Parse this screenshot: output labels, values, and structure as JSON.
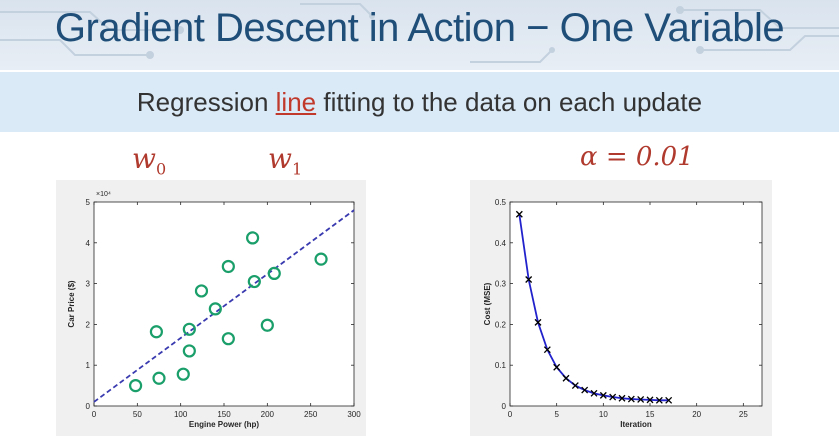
{
  "header": {
    "title": "Gradient Descent in Action − One Variable",
    "subtitle_pre": "Regression ",
    "subtitle_highlight": "line",
    "subtitle_post": " fitting to the data on each update"
  },
  "labels": {
    "w0": "w",
    "w0_sub": "0",
    "w1": "w",
    "w1_sub": "1",
    "alpha": "α = 0.01"
  },
  "colors": {
    "title": "#1f4e79",
    "scatter_marker": "#1a9e6a",
    "fit_line": "#3a3ab0",
    "cost_line": "#2222cc",
    "math_red": "#b03a2e"
  },
  "chart_data": [
    {
      "type": "scatter",
      "xlabel": "Engine Power (hp)",
      "ylabel": "Car Price ($)",
      "y_multiplier_label": "×10⁴",
      "xlim": [
        0,
        300
      ],
      "ylim": [
        0,
        5
      ],
      "xticks": [
        0,
        50,
        100,
        150,
        200,
        250,
        300
      ],
      "yticks": [
        0,
        1,
        2,
        3,
        4,
        5
      ],
      "points": [
        [
          48,
          0.5
        ],
        [
          75,
          0.68
        ],
        [
          72,
          1.82
        ],
        [
          103,
          0.78
        ],
        [
          110,
          1.35
        ],
        [
          110,
          1.88
        ],
        [
          124,
          2.82
        ],
        [
          140,
          2.38
        ],
        [
          155,
          3.42
        ],
        [
          155,
          1.65
        ],
        [
          183,
          4.12
        ],
        [
          185,
          3.05
        ],
        [
          200,
          1.98
        ],
        [
          208,
          3.25
        ],
        [
          262,
          3.6
        ]
      ],
      "fit_line": {
        "x": [
          0,
          300
        ],
        "y": [
          0.1,
          4.8
        ],
        "style": "dashed"
      }
    },
    {
      "type": "line",
      "xlabel": "Iteration",
      "ylabel": "Cost (MSE)",
      "xlim": [
        0,
        27
      ],
      "ylim": [
        0,
        0.5
      ],
      "xticks": [
        0,
        5,
        10,
        15,
        20,
        25
      ],
      "yticks": [
        0,
        0.1,
        0.2,
        0.3,
        0.4,
        0.5
      ],
      "x": [
        1,
        2,
        3,
        4,
        5,
        6,
        7,
        8,
        9,
        10,
        11,
        12,
        13,
        14,
        15,
        16,
        17
      ],
      "y": [
        0.47,
        0.31,
        0.205,
        0.138,
        0.095,
        0.068,
        0.05,
        0.039,
        0.031,
        0.026,
        0.022,
        0.019,
        0.017,
        0.016,
        0.015,
        0.014,
        0.014
      ]
    }
  ]
}
